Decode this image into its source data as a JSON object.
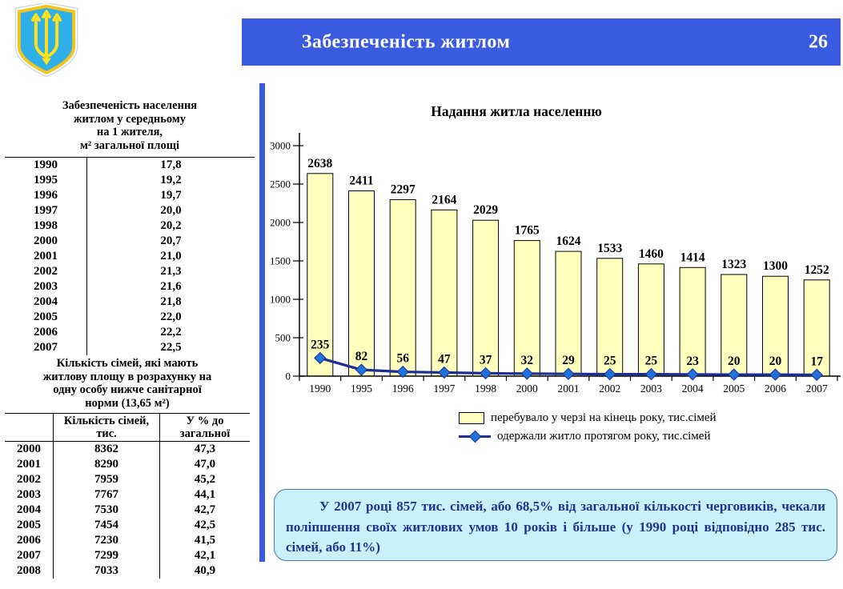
{
  "header": {
    "title": "Забезпеченість житлом",
    "page_number": "26"
  },
  "table1": {
    "title_lines": [
      "Забезпеченість населення",
      "житлом у середньому",
      "на 1 жителя,",
      "м² загальної площі"
    ],
    "rows": [
      [
        "1990",
        "17,8"
      ],
      [
        "1995",
        "19,2"
      ],
      [
        "1996",
        "19,7"
      ],
      [
        "1997",
        "20,0"
      ],
      [
        "1998",
        "20,2"
      ],
      [
        "2000",
        "20,7"
      ],
      [
        "2001",
        "21,0"
      ],
      [
        "2002",
        "21,3"
      ],
      [
        "2003",
        "21,6"
      ],
      [
        "2004",
        "21,8"
      ],
      [
        "2005",
        "22,0"
      ],
      [
        "2006",
        "22,2"
      ],
      [
        "2007",
        "22,5"
      ]
    ]
  },
  "table2": {
    "title_lines": [
      "Кількість сімей, які мають",
      "житлову площу в розрахунку на",
      "одну особу нижче санітарної",
      "норми (13,65 м²)"
    ],
    "col_headers": [
      "Кількість сімей, тис.",
      "У % до загальної"
    ],
    "rows": [
      [
        "2000",
        "8362",
        "47,3"
      ],
      [
        "2001",
        "8290",
        "47,0"
      ],
      [
        "2002",
        "7959",
        "45,2"
      ],
      [
        "2003",
        "7767",
        "44,1"
      ],
      [
        "2004",
        "7530",
        "42,7"
      ],
      [
        "2005",
        "7454",
        "42,5"
      ],
      [
        "2006",
        "7230",
        "41,5"
      ],
      [
        "2007",
        "7299",
        "42,1"
      ],
      [
        "2008",
        "7033",
        "40,9"
      ]
    ]
  },
  "chart_data": {
    "type": "bar",
    "title": "Надання житла населенню",
    "categories": [
      "1990",
      "1995",
      "1996",
      "1997",
      "1998",
      "2000",
      "2001",
      "2002",
      "2003",
      "2004",
      "2005",
      "2006",
      "2007"
    ],
    "series": [
      {
        "name": "перебувало у черзі на кінець року, тис.сімей",
        "type": "bar",
        "values": [
          2638,
          2411,
          2297,
          2164,
          2029,
          1765,
          1624,
          1533,
          1460,
          1414,
          1323,
          1300,
          1252
        ]
      },
      {
        "name": "одержали житло протягом року, тис.сімей",
        "type": "line",
        "values": [
          235,
          82,
          56,
          47,
          37,
          32,
          29,
          25,
          25,
          23,
          20,
          20,
          17
        ]
      }
    ],
    "xlabel": "",
    "ylabel": "",
    "ylim": [
      0,
      3000
    ],
    "ytick_step": 500,
    "grid": false,
    "legend_position": "bottom",
    "data_labels": true
  },
  "note_box": {
    "text": "У 2007 році 857 тис. сімей, або 68,5% від загальної кількості черговиків, чекали поліпшення своїх житлових умов 10 років і більше (у 1990 році відповідно 285 тис. сімей, або 11%)"
  },
  "colors": {
    "header_blue": "#3A5ADF",
    "bar_fill": "#FFFFBE",
    "bar_border": "#000000",
    "line_color": "#1F2D96",
    "marker_fill": "#1E72D8",
    "value_label_blue": "#3366FF",
    "note_bg": "#C8F1FA",
    "note_border": "#4A7AA5",
    "note_text": "#20338E"
  }
}
